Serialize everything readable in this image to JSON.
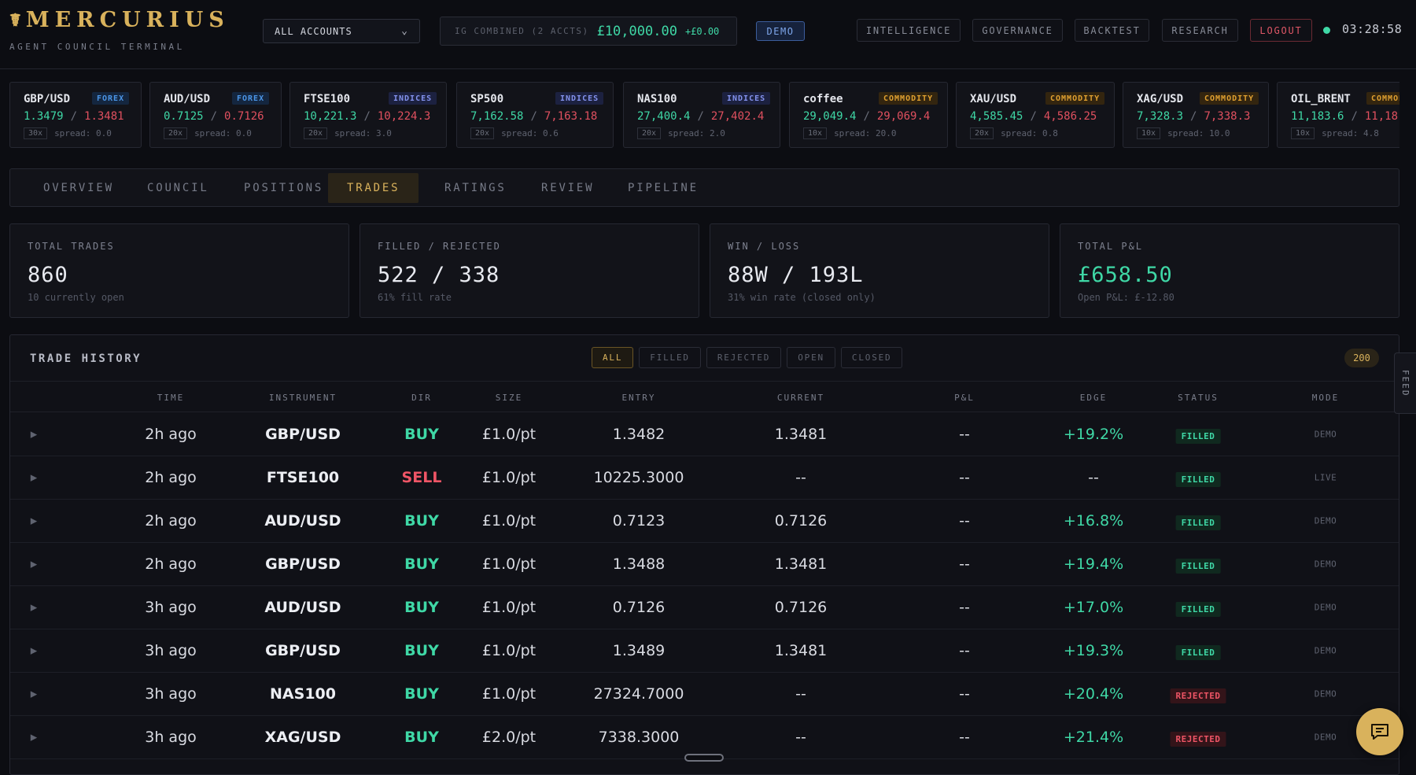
{
  "brand": {
    "title": "MERCURIUS",
    "logo_icon": "caduceus-icon",
    "subtitle": "AGENT COUNCIL TERMINAL"
  },
  "account_select": {
    "value": "ALL ACCOUNTS"
  },
  "combined": {
    "label": "IG COMBINED (2 ACCTS)",
    "amount": "£10,000.00",
    "change": "+£0.00"
  },
  "mode_badge": "DEMO",
  "nav": {
    "intelligence": "INTELLIGENCE",
    "governance": "GOVERNANCE",
    "backtest": "BACKTEST",
    "research": "RESEARCH",
    "logout": "LOGOUT"
  },
  "clock": "03:28:58",
  "tickers": [
    {
      "name": "GBP/USD",
      "category": "FOREX",
      "bid": "1.3479",
      "ask": "1.3481",
      "leverage": "30x",
      "spread": "spread: 0.0"
    },
    {
      "name": "AUD/USD",
      "category": "FOREX",
      "bid": "0.7125",
      "ask": "0.7126",
      "leverage": "20x",
      "spread": "spread: 0.0"
    },
    {
      "name": "FTSE100",
      "category": "INDICES",
      "bid": "10,221.3",
      "ask": "10,224.3",
      "leverage": "20x",
      "spread": "spread: 3.0"
    },
    {
      "name": "SP500",
      "category": "INDICES",
      "bid": "7,162.58",
      "ask": "7,163.18",
      "leverage": "20x",
      "spread": "spread: 0.6"
    },
    {
      "name": "NAS100",
      "category": "INDICES",
      "bid": "27,400.4",
      "ask": "27,402.4",
      "leverage": "20x",
      "spread": "spread: 2.0"
    },
    {
      "name": "coffee",
      "category": "COMMODITY",
      "bid": "29,049.4",
      "ask": "29,069.4",
      "leverage": "10x",
      "spread": "spread: 20.0"
    },
    {
      "name": "XAU/USD",
      "category": "COMMODITY",
      "bid": "4,585.45",
      "ask": "4,586.25",
      "leverage": "20x",
      "spread": "spread: 0.8"
    },
    {
      "name": "XAG/USD",
      "category": "COMMODITY",
      "bid": "7,328.3",
      "ask": "7,338.3",
      "leverage": "10x",
      "spread": "spread: 10.0"
    },
    {
      "name": "OIL_BRENT",
      "category": "COMMODITY",
      "bid": "11,183.6",
      "ask": "11,18",
      "leverage": "10x",
      "spread": "spread: 4.8"
    }
  ],
  "tabs": [
    "OVERVIEW",
    "COUNCIL",
    "POSITIONS",
    "TRADES",
    "RATINGS",
    "REVIEW",
    "PIPELINE"
  ],
  "active_tab": "TRADES",
  "stats": [
    {
      "label": "TOTAL TRADES",
      "value": "860",
      "sub": "10 currently open"
    },
    {
      "label": "FILLED / REJECTED",
      "value": "522 / 338",
      "sub": "61% fill rate"
    },
    {
      "label": "WIN / LOSS",
      "value": "88W / 193L",
      "sub": "31% win rate (closed only)"
    },
    {
      "label": "TOTAL P&L",
      "value": "£658.50",
      "sub": "Open P&L: £-12.80"
    }
  ],
  "history": {
    "title": "TRADE HISTORY",
    "filters": [
      "ALL",
      "FILLED",
      "REJECTED",
      "OPEN",
      "CLOSED"
    ],
    "active_filter": "ALL",
    "count": "200",
    "columns": [
      "TIME",
      "INSTRUMENT",
      "DIR",
      "SIZE",
      "ENTRY",
      "CURRENT",
      "P&L",
      "EDGE",
      "STATUS",
      "MODE"
    ],
    "expand_icon": "chevron-right-icon",
    "rows": [
      {
        "time": "2h ago",
        "instrument": "GBP/USD",
        "dir": "BUY",
        "size": "£1.0/pt",
        "entry": "1.3482",
        "current": "1.3481",
        "pnl": "--",
        "edge": "+19.2%",
        "status": "FILLED",
        "mode": "DEMO"
      },
      {
        "time": "2h ago",
        "instrument": "FTSE100",
        "dir": "SELL",
        "size": "£1.0/pt",
        "entry": "10225.3000",
        "current": "--",
        "pnl": "--",
        "edge": "--",
        "status": "FILLED",
        "mode": "LIVE"
      },
      {
        "time": "2h ago",
        "instrument": "AUD/USD",
        "dir": "BUY",
        "size": "£1.0/pt",
        "entry": "0.7123",
        "current": "0.7126",
        "pnl": "--",
        "edge": "+16.8%",
        "status": "FILLED",
        "mode": "DEMO"
      },
      {
        "time": "2h ago",
        "instrument": "GBP/USD",
        "dir": "BUY",
        "size": "£1.0/pt",
        "entry": "1.3488",
        "current": "1.3481",
        "pnl": "--",
        "edge": "+19.4%",
        "status": "FILLED",
        "mode": "DEMO"
      },
      {
        "time": "3h ago",
        "instrument": "AUD/USD",
        "dir": "BUY",
        "size": "£1.0/pt",
        "entry": "0.7126",
        "current": "0.7126",
        "pnl": "--",
        "edge": "+17.0%",
        "status": "FILLED",
        "mode": "DEMO"
      },
      {
        "time": "3h ago",
        "instrument": "GBP/USD",
        "dir": "BUY",
        "size": "£1.0/pt",
        "entry": "1.3489",
        "current": "1.3481",
        "pnl": "--",
        "edge": "+19.3%",
        "status": "FILLED",
        "mode": "DEMO"
      },
      {
        "time": "3h ago",
        "instrument": "NAS100",
        "dir": "BUY",
        "size": "£1.0/pt",
        "entry": "27324.7000",
        "current": "--",
        "pnl": "--",
        "edge": "+20.4%",
        "status": "REJECTED",
        "mode": "DEMO"
      },
      {
        "time": "3h ago",
        "instrument": "XAG/USD",
        "dir": "BUY",
        "size": "£2.0/pt",
        "entry": "7338.3000",
        "current": "--",
        "pnl": "--",
        "edge": "+21.4%",
        "status": "REJECTED",
        "mode": "DEMO"
      }
    ]
  },
  "feed_tab": "FEED",
  "chat_button_icon": "chat-bubble-icon",
  "colors": {
    "accent_gold": "#d9b25c",
    "positive": "#3fd8a6",
    "negative": "#ef5566",
    "background": "#0c0d12"
  }
}
